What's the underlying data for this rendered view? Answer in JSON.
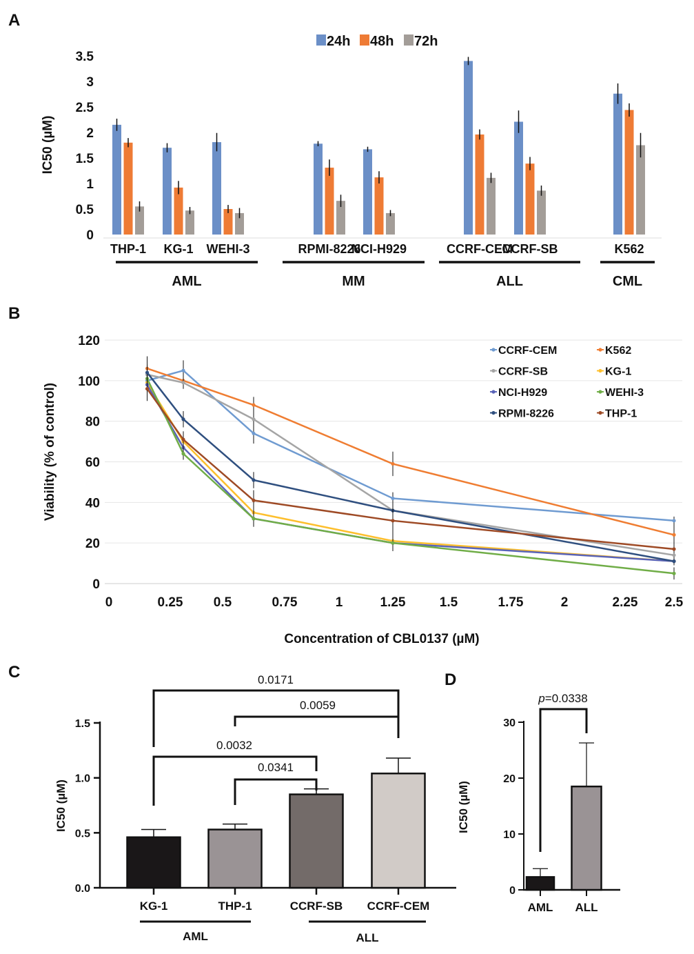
{
  "panels": {
    "a": "A",
    "b": "B",
    "c": "C",
    "d": "D"
  },
  "chart_data": [
    {
      "type": "bar",
      "panel": "A",
      "ylabel": "IC50 (µM)",
      "ylim": [
        0,
        3.5
      ],
      "yticks": [
        "0",
        "0.5",
        "1",
        "1.5",
        "2",
        "2.5",
        "3",
        "3.5"
      ],
      "grid": false,
      "legend_position": "top-center",
      "categories": [
        "THP-1",
        "KG-1",
        "WEHI-3",
        "RPMI-8226",
        "NCI-H929",
        "CCRF-CEM",
        "CCRF-SB",
        "K562"
      ],
      "groups": [
        {
          "label": "AML",
          "members": [
            0,
            1,
            2
          ]
        },
        {
          "label": "MM",
          "members": [
            3,
            4
          ]
        },
        {
          "label": "ALL",
          "members": [
            5,
            6
          ]
        },
        {
          "label": "CML",
          "members": [
            7
          ]
        }
      ],
      "series": [
        {
          "name": "24h",
          "color": "#6b8fc7",
          "values": [
            2.15,
            1.7,
            1.81,
            1.78,
            1.67,
            3.4,
            2.21,
            2.76
          ],
          "errors": [
            0.12,
            0.09,
            0.18,
            0.05,
            0.05,
            0.08,
            0.22,
            0.2
          ]
        },
        {
          "name": "48h",
          "color": "#ee7b35",
          "values": [
            1.8,
            0.92,
            0.5,
            1.31,
            1.12,
            1.96,
            1.39,
            2.44
          ],
          "errors": [
            0.09,
            0.13,
            0.08,
            0.16,
            0.12,
            0.1,
            0.13,
            0.13
          ]
        },
        {
          "name": "72h",
          "color": "#a39d98",
          "values": [
            0.55,
            0.47,
            0.42,
            0.66,
            0.42,
            1.11,
            0.86,
            1.75
          ],
          "errors": [
            0.1,
            0.07,
            0.1,
            0.12,
            0.06,
            0.1,
            0.1,
            0.24
          ]
        }
      ]
    },
    {
      "type": "line",
      "panel": "B",
      "xlabel": "Concentration of CBL0137 (µM)",
      "ylabel": "Viability (% of control)",
      "ylim": [
        0,
        120
      ],
      "yticks": [
        "0",
        "20",
        "40",
        "60",
        "80",
        "100",
        "120"
      ],
      "xticks": [
        "0",
        "0.25",
        "0.5",
        "0.75",
        "1",
        "1.25",
        "1.5",
        "1.75",
        "2",
        "2.25",
        "2.5"
      ],
      "grid": true,
      "legend_position": "top-right",
      "x": [
        0.156,
        0.3125,
        0.625,
        1.25,
        2.5
      ],
      "series": [
        {
          "name": "CCRF-CEM",
          "color": "#6f9bd1",
          "values": [
            100,
            105,
            74,
            42,
            31
          ],
          "errors": [
            3,
            5,
            5,
            3,
            2
          ]
        },
        {
          "name": "K562",
          "color": "#ef7d32",
          "values": [
            106,
            100,
            88,
            59,
            24
          ],
          "errors": [
            6,
            4,
            4,
            6,
            6
          ]
        },
        {
          "name": "CCRF-SB",
          "color": "#a5a5a5",
          "values": [
            103,
            99,
            81,
            36,
            14
          ],
          "errors": [
            4,
            3,
            5,
            4,
            3
          ]
        },
        {
          "name": "KG-1",
          "color": "#fdbf2d",
          "values": [
            99,
            70,
            35,
            21,
            11
          ],
          "errors": [
            4,
            5,
            4,
            4,
            2
          ]
        },
        {
          "name": "NCI-H929",
          "color": "#5a64b8",
          "values": [
            98,
            67,
            32,
            20,
            11
          ],
          "errors": [
            4,
            4,
            4,
            4,
            2
          ]
        },
        {
          "name": "WEHI-3",
          "color": "#70ad47",
          "values": [
            101,
            64,
            32,
            20,
            5
          ],
          "errors": [
            3,
            3,
            4,
            4,
            3
          ]
        },
        {
          "name": "RPMI-8226",
          "color": "#2f4f7f",
          "values": [
            104,
            81,
            51,
            36,
            11
          ],
          "errors": [
            4,
            4,
            4,
            4,
            2
          ]
        },
        {
          "name": "THP-1",
          "color": "#9e4a25",
          "values": [
            96,
            71,
            41,
            31,
            17
          ],
          "errors": [
            6,
            4,
            5,
            7,
            2
          ]
        }
      ]
    },
    {
      "type": "bar",
      "panel": "C",
      "ylabel": "IC50 (µM)",
      "ylim": [
        0,
        1.5
      ],
      "yticks": [
        "0.0",
        "0.5",
        "1.0",
        "1.5"
      ],
      "grid": false,
      "categories": [
        "KG-1",
        "THP-1",
        "CCRF-SB",
        "CCRF-CEM"
      ],
      "colors": [
        "#1a1718",
        "#9a9395",
        "#736b69",
        "#d1cbc7"
      ],
      "values": [
        0.46,
        0.53,
        0.85,
        1.04
      ],
      "errors": [
        0.07,
        0.05,
        0.05,
        0.14
      ],
      "groups": [
        {
          "label": "AML",
          "members": [
            0,
            1
          ]
        },
        {
          "label": "ALL",
          "members": [
            2,
            3
          ]
        }
      ],
      "comparisons": [
        {
          "from": "KG-1",
          "to": "CCRF-CEM",
          "p": "0.0171"
        },
        {
          "from": "THP-1",
          "to": "CCRF-CEM",
          "p": "0.0059"
        },
        {
          "from": "KG-1",
          "to": "CCRF-SB",
          "p": "0.0032"
        },
        {
          "from": "THP-1",
          "to": "CCRF-SB",
          "p": "0.0341"
        }
      ]
    },
    {
      "type": "bar",
      "panel": "D",
      "ylabel": "IC50 (µM)",
      "ylim": [
        0,
        30
      ],
      "yticks": [
        "0",
        "10",
        "20",
        "30"
      ],
      "grid": false,
      "categories": [
        "AML",
        "ALL"
      ],
      "colors": [
        "#1a1718",
        "#9a9395"
      ],
      "values": [
        2.3,
        18.5
      ],
      "errors": [
        1.5,
        7.8
      ],
      "comparison": {
        "p_prefix": "p",
        "p_value": "=0.0338"
      }
    }
  ]
}
